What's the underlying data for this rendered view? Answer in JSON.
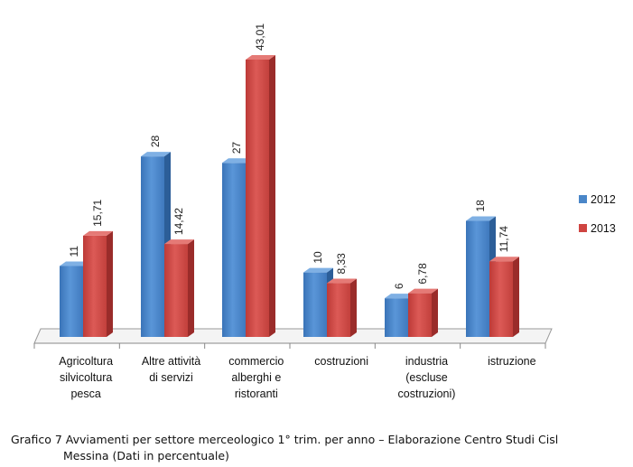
{
  "chart_data": {
    "type": "bar",
    "style": "3d-clustered-column",
    "categories": [
      [
        "Agricoltura",
        "silvicoltura",
        "pesca"
      ],
      [
        "Altre attività",
        "di servizi"
      ],
      [
        "commercio",
        "alberghi e",
        "ristoranti"
      ],
      [
        "costruzioni"
      ],
      [
        "industria",
        "(escluse",
        "costruzioni)"
      ],
      [
        "istruzione"
      ]
    ],
    "series": [
      {
        "name": "2012",
        "color": "#4a86c8",
        "values": [
          11,
          28,
          27,
          10,
          6,
          18
        ],
        "labels": [
          "11",
          "28",
          "27",
          "10",
          "6",
          "18"
        ]
      },
      {
        "name": "2013",
        "color": "#cf4441",
        "values": [
          15.71,
          14.42,
          43.01,
          8.33,
          6.78,
          11.74
        ],
        "labels": [
          "15,71",
          "14,42",
          "43,01",
          "8,33",
          "6,78",
          "11,74"
        ]
      }
    ],
    "ylim": [
      0,
      45
    ],
    "grid": false,
    "legend": "right"
  },
  "caption": {
    "line1": "Grafico 7 Avviamenti per settore merceologico 1° trim. per anno – Elaborazione Centro Studi Cisl",
    "line2": "Messina (Dati in percentuale)"
  }
}
